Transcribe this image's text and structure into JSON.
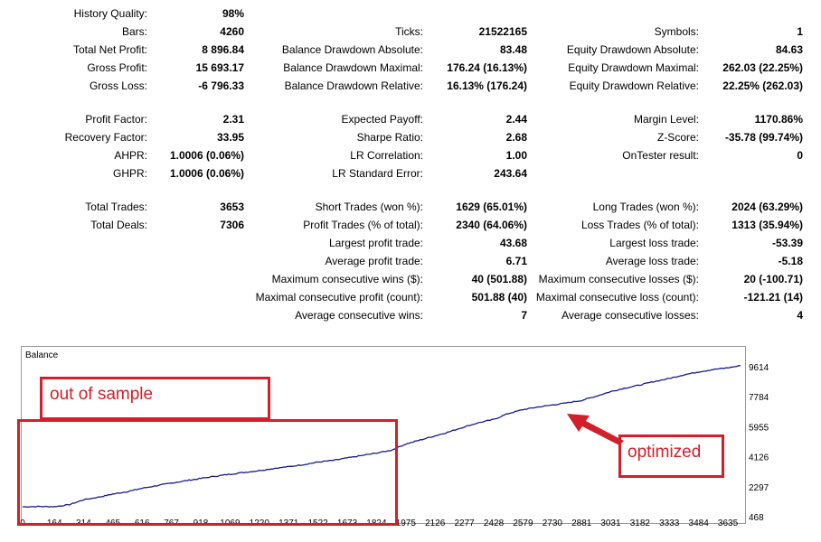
{
  "stats": {
    "col1": [
      {
        "label": "History Quality:",
        "value": "98%"
      },
      {
        "label": "Bars:",
        "value": "4260"
      },
      {
        "label": "Total Net Profit:",
        "value": "8 896.84"
      },
      {
        "label": "Gross Profit:",
        "value": "15 693.17"
      },
      {
        "label": "Gross Loss:",
        "value": "-6 796.33"
      },
      {
        "label": "Profit Factor:",
        "value": "2.31"
      },
      {
        "label": "Recovery Factor:",
        "value": "33.95"
      },
      {
        "label": "AHPR:",
        "value": "1.0006 (0.06%)"
      },
      {
        "label": "GHPR:",
        "value": "1.0006 (0.06%)"
      },
      {
        "label": "Total Trades:",
        "value": "3653"
      },
      {
        "label": "Total Deals:",
        "value": "7306"
      }
    ],
    "col2": [
      {
        "label": "Ticks:",
        "value": "21522165"
      },
      {
        "label": "Balance Drawdown Absolute:",
        "value": "83.48"
      },
      {
        "label": "Balance Drawdown Maximal:",
        "value": "176.24 (16.13%)"
      },
      {
        "label": "Balance Drawdown Relative:",
        "value": "16.13% (176.24)"
      },
      {
        "label": "Expected Payoff:",
        "value": "2.44"
      },
      {
        "label": "Sharpe Ratio:",
        "value": "2.68"
      },
      {
        "label": "LR Correlation:",
        "value": "1.00"
      },
      {
        "label": "LR Standard Error:",
        "value": "243.64"
      },
      {
        "label": "Short Trades (won %):",
        "value": "1629 (65.01%)"
      },
      {
        "label": "Profit Trades (% of total):",
        "value": "2340 (64.06%)"
      },
      {
        "label": "Largest profit trade:",
        "value": "43.68"
      },
      {
        "label": "Average profit trade:",
        "value": "6.71"
      },
      {
        "label": "Maximum consecutive wins ($):",
        "value": "40 (501.88)"
      },
      {
        "label": "Maximal consecutive profit (count):",
        "value": "501.88 (40)"
      },
      {
        "label": "Average consecutive wins:",
        "value": "7"
      }
    ],
    "col3": [
      {
        "label": "Symbols:",
        "value": "1"
      },
      {
        "label": "Equity Drawdown Absolute:",
        "value": "84.63"
      },
      {
        "label": "Equity Drawdown Maximal:",
        "value": "262.03 (22.25%)"
      },
      {
        "label": "Equity Drawdown Relative:",
        "value": "22.25% (262.03)"
      },
      {
        "label": "Margin Level:",
        "value": "1170.86%"
      },
      {
        "label": "Z-Score:",
        "value": "-35.78 (99.74%)"
      },
      {
        "label": "OnTester result:",
        "value": "0"
      },
      {
        "label": "Long Trades (won %):",
        "value": "2024 (63.29%)"
      },
      {
        "label": "Loss Trades (% of total):",
        "value": "1313 (35.94%)"
      },
      {
        "label": "Largest loss trade:",
        "value": "-53.39"
      },
      {
        "label": "Average loss trade:",
        "value": "-5.18"
      },
      {
        "label": "Maximum consecutive losses ($):",
        "value": "20 (-100.71)"
      },
      {
        "label": "Maximal consecutive loss (count):",
        "value": "-121.21 (14)"
      },
      {
        "label": "Average consecutive losses:",
        "value": "4"
      }
    ]
  },
  "chart": {
    "title": "Balance",
    "line_color": "#1a1a8c",
    "y_ticks": [
      "9614",
      "7784",
      "5955",
      "4126",
      "2297",
      "468"
    ],
    "x_ticks": [
      "0",
      "164",
      "314",
      "465",
      "616",
      "767",
      "918",
      "1069",
      "1220",
      "1371",
      "1522",
      "1673",
      "1824",
      "1975",
      "2126",
      "2277",
      "2428",
      "2579",
      "2730",
      "2881",
      "3031",
      "3182",
      "3333",
      "3484",
      "3635"
    ],
    "balance_series": [
      [
        0,
        1075
      ],
      [
        90,
        1090
      ],
      [
        164,
        1080
      ],
      [
        240,
        1200
      ],
      [
        314,
        1500
      ],
      [
        400,
        1680
      ],
      [
        465,
        1850
      ],
      [
        540,
        2000
      ],
      [
        616,
        2200
      ],
      [
        700,
        2380
      ],
      [
        767,
        2520
      ],
      [
        850,
        2680
      ],
      [
        918,
        2800
      ],
      [
        1000,
        2950
      ],
      [
        1069,
        3060
      ],
      [
        1150,
        3180
      ],
      [
        1220,
        3280
      ],
      [
        1300,
        3420
      ],
      [
        1371,
        3520
      ],
      [
        1450,
        3650
      ],
      [
        1522,
        3800
      ],
      [
        1600,
        3900
      ],
      [
        1673,
        4050
      ],
      [
        1750,
        4200
      ],
      [
        1824,
        4350
      ],
      [
        1900,
        4520
      ],
      [
        1975,
        4900
      ],
      [
        2050,
        5150
      ],
      [
        2126,
        5400
      ],
      [
        2200,
        5650
      ],
      [
        2277,
        5950
      ],
      [
        2350,
        6200
      ],
      [
        2428,
        6400
      ],
      [
        2500,
        6750
      ],
      [
        2579,
        7000
      ],
      [
        2650,
        7150
      ],
      [
        2730,
        7280
      ],
      [
        2800,
        7400
      ],
      [
        2881,
        7560
      ],
      [
        2950,
        7800
      ],
      [
        3031,
        8100
      ],
      [
        3100,
        8300
      ],
      [
        3182,
        8500
      ],
      [
        3250,
        8700
      ],
      [
        3333,
        8900
      ],
      [
        3400,
        9100
      ],
      [
        3484,
        9300
      ],
      [
        3560,
        9450
      ],
      [
        3635,
        9550
      ],
      [
        3700,
        9680
      ]
    ]
  },
  "annotations": {
    "out_of_sample": "out of sample",
    "optimized": "optimized",
    "accent_color": "#d1202a"
  }
}
